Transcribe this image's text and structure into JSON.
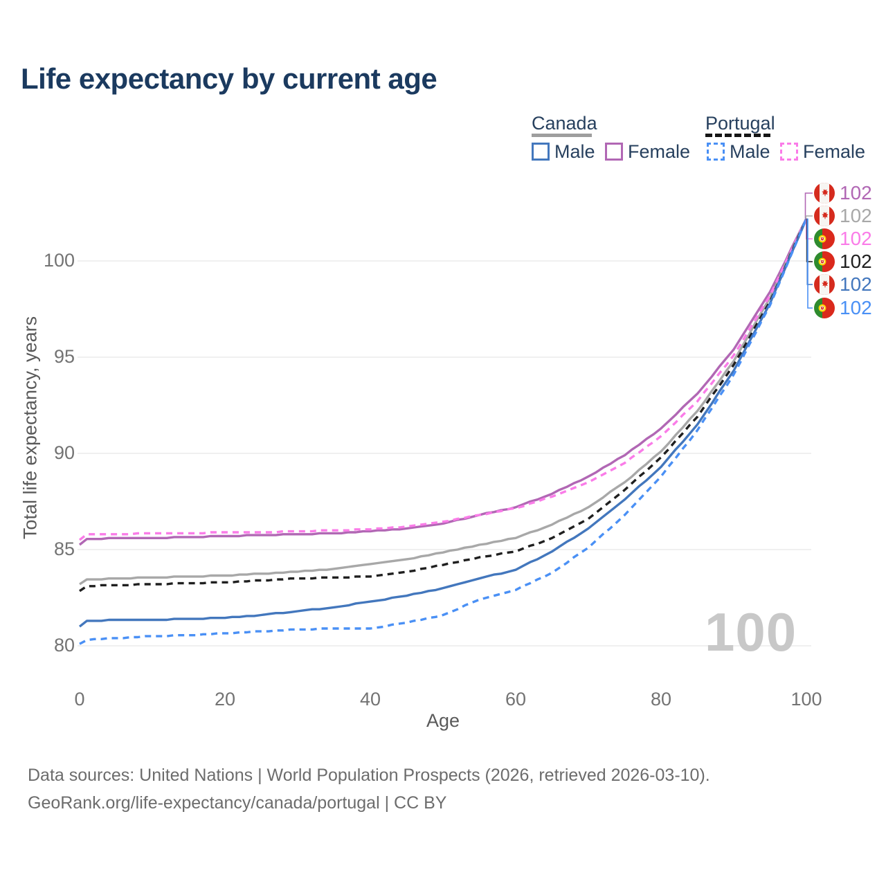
{
  "title": "Life expectancy by current age",
  "legend": {
    "canada_label": "Canada",
    "portugal_label": "Portugal",
    "canada_male_label": "Male",
    "canada_female_label": "Female",
    "portugal_male_label": "Male",
    "portugal_female_label": "Female"
  },
  "watermark": "100",
  "footer": {
    "line1": "Data sources: United Nations | World Population Prospects (2026, retrieved 2026-03-10).",
    "line2": "GeoRank.org/life-expectancy/canada/portugal | CC BY"
  },
  "colors": {
    "title": "#1b3a5f",
    "legend_text": "#27405e",
    "axis_text": "#737373",
    "axis_title": "#595959",
    "gridline": "#ececec",
    "watermark": "#c8c8c8",
    "canada_underline": "#9e9e9e",
    "portugal_underline": "#161616"
  },
  "chart_data": {
    "type": "line",
    "title": "Life expectancy by current age",
    "xlabel": "Age",
    "ylabel": "Total life expectancy, years",
    "xlim": [
      0,
      100
    ],
    "ylim": [
      78.5,
      103
    ],
    "x_ticks": [
      "0",
      "20",
      "40",
      "60",
      "80",
      "100"
    ],
    "x_tick_values": [
      0,
      20,
      40,
      60,
      80,
      100
    ],
    "y_ticks": [
      "80",
      "85",
      "90",
      "95",
      "100"
    ],
    "y_tick_values": [
      80,
      85,
      90,
      95,
      100
    ],
    "grid": "horizontal-only",
    "legend_position": "top-right",
    "x": [
      0,
      1,
      5,
      10,
      15,
      20,
      25,
      30,
      35,
      40,
      45,
      50,
      55,
      60,
      65,
      70,
      75,
      80,
      85,
      90,
      95,
      100
    ],
    "series": [
      {
        "name": "Canada Female",
        "country": "Canada",
        "sex": "Female",
        "color": "#b167b4",
        "line_style": "solid",
        "end_label": "102",
        "values": [
          85.25,
          85.55,
          85.6,
          85.6,
          85.65,
          85.7,
          85.75,
          85.8,
          85.85,
          85.95,
          86.1,
          86.35,
          86.8,
          87.2,
          87.9,
          88.8,
          89.9,
          91.3,
          93.1,
          95.4,
          98.4,
          102.2
        ]
      },
      {
        "name": "Canada Both sexes",
        "country": "Canada",
        "sex": "Both",
        "color": "#a8a8a8",
        "line_style": "solid",
        "end_label": "102",
        "values": [
          83.2,
          83.45,
          83.5,
          83.55,
          83.6,
          83.65,
          83.75,
          83.85,
          84.0,
          84.25,
          84.5,
          84.85,
          85.25,
          85.6,
          86.3,
          87.2,
          88.5,
          90.1,
          92.2,
          94.8,
          98.1,
          102.2
        ]
      },
      {
        "name": "Portugal Female",
        "country": "Portugal",
        "sex": "Female",
        "color": "#fa7ce8",
        "line_style": "dashed",
        "end_label": "102",
        "values": [
          85.5,
          85.8,
          85.8,
          85.85,
          85.85,
          85.9,
          85.9,
          85.95,
          86.0,
          86.05,
          86.2,
          86.45,
          86.8,
          87.15,
          87.75,
          88.5,
          89.5,
          90.9,
          92.7,
          95.1,
          98.2,
          102.2
        ]
      },
      {
        "name": "Portugal Both sexes",
        "country": "Portugal",
        "sex": "Both",
        "color": "#1f1f1f",
        "line_style": "dashed",
        "end_label": "102",
        "values": [
          82.85,
          83.1,
          83.15,
          83.2,
          83.25,
          83.3,
          83.4,
          83.5,
          83.55,
          83.6,
          83.85,
          84.2,
          84.6,
          84.9,
          85.6,
          86.6,
          88.1,
          89.8,
          91.9,
          94.6,
          97.9,
          102.2
        ]
      },
      {
        "name": "Canada Male",
        "country": "Canada",
        "sex": "Male",
        "color": "#4377bd",
        "line_style": "solid",
        "end_label": "102",
        "values": [
          81.0,
          81.3,
          81.35,
          81.35,
          81.4,
          81.45,
          81.6,
          81.8,
          82.0,
          82.3,
          82.6,
          83.0,
          83.5,
          83.95,
          84.9,
          86.1,
          87.6,
          89.3,
          91.5,
          94.3,
          97.8,
          102.2
        ]
      },
      {
        "name": "Portugal Male",
        "country": "Portugal",
        "sex": "Male",
        "color": "#4a90f5",
        "line_style": "dashed",
        "end_label": "102",
        "values": [
          80.1,
          80.3,
          80.4,
          80.5,
          80.55,
          80.65,
          80.75,
          80.85,
          80.9,
          80.9,
          81.2,
          81.6,
          82.4,
          82.9,
          83.8,
          85.1,
          86.8,
          88.8,
          91.2,
          94.1,
          97.7,
          102.2
        ]
      }
    ]
  },
  "end_labels": [
    {
      "flag": "canada",
      "value": "102",
      "color": "#b167b4"
    },
    {
      "flag": "canada",
      "value": "102",
      "color": "#a8a8a8"
    },
    {
      "flag": "portugal",
      "value": "102",
      "color": "#fa7ce8"
    },
    {
      "flag": "portugal",
      "value": "102",
      "color": "#1f1f1f"
    },
    {
      "flag": "canada",
      "value": "102",
      "color": "#4377bd"
    },
    {
      "flag": "portugal",
      "value": "102",
      "color": "#4a90f5"
    }
  ]
}
